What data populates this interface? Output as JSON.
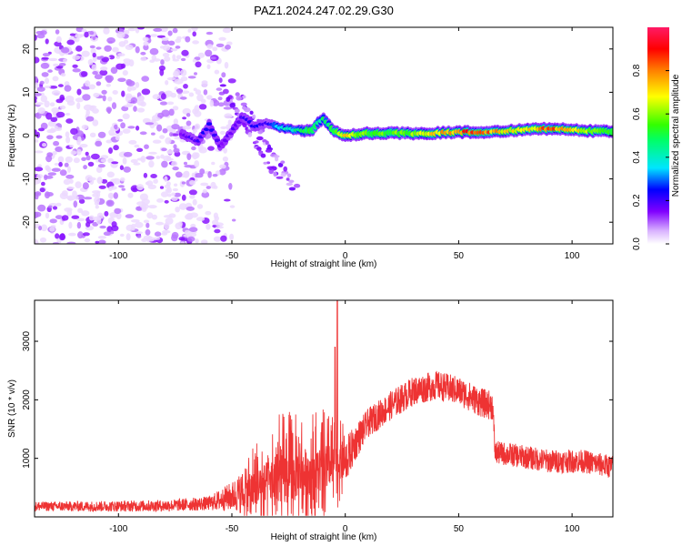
{
  "title": "PAZ1.2024.247.02.29.G30",
  "chart_data": [
    {
      "type": "heatmap",
      "xlabel": "Height of straight line (km)",
      "ylabel": "Frequency (Hz)",
      "xlim": [
        -137,
        118
      ],
      "ylim": [
        -25,
        25
      ],
      "xticks": [
        -100,
        -50,
        0,
        50,
        100
      ],
      "yticks": [
        -20,
        -10,
        0,
        10,
        20
      ],
      "colorbar": {
        "label": "Normalized spectral amplitude",
        "range": [
          0,
          1
        ],
        "ticks": [
          0.0,
          0.2,
          0.4,
          0.6,
          0.8
        ],
        "colormap": [
          "#ffffff",
          "#d9b3ff",
          "#8000ff",
          "#0000ff",
          "#00e5ff",
          "#00ff66",
          "#33ff00",
          "#ffff00",
          "#ff8000",
          "#ff0000",
          "#ff1a66"
        ]
      },
      "noise_region": {
        "x_range": [
          -137,
          -48
        ],
        "freq_range": [
          -25,
          25
        ],
        "amplitude": 0.05
      },
      "signal_track": [
        {
          "x": -72,
          "f": 0.5,
          "amp": 0.15
        },
        {
          "x": -65,
          "f": -1.5,
          "amp": 0.2
        },
        {
          "x": -60,
          "f": 2.5,
          "amp": 0.25
        },
        {
          "x": -55,
          "f": -2.5,
          "amp": 0.15
        },
        {
          "x": -45,
          "f": 4.5,
          "amp": 0.2
        },
        {
          "x": -40,
          "f": 2.0,
          "amp": 0.25
        },
        {
          "x": -35,
          "f": 3.0,
          "amp": 0.2
        },
        {
          "x": -30,
          "f": 2.0,
          "amp": 0.35
        },
        {
          "x": -25,
          "f": 1.5,
          "amp": 0.4
        },
        {
          "x": -20,
          "f": 1.2,
          "amp": 0.45
        },
        {
          "x": -15,
          "f": 1.0,
          "amp": 0.5
        },
        {
          "x": -10,
          "f": 4.0,
          "amp": 0.45
        },
        {
          "x": -5,
          "f": 1.0,
          "amp": 0.5
        },
        {
          "x": 0,
          "f": 0.0,
          "amp": 0.7
        },
        {
          "x": 5,
          "f": 0.2,
          "amp": 0.6
        },
        {
          "x": 10,
          "f": 0.5,
          "amp": 0.55
        },
        {
          "x": 20,
          "f": 0.6,
          "amp": 0.55
        },
        {
          "x": 30,
          "f": 0.5,
          "amp": 0.6
        },
        {
          "x": 40,
          "f": 0.6,
          "amp": 0.7
        },
        {
          "x": 50,
          "f": 0.8,
          "amp": 0.8
        },
        {
          "x": 60,
          "f": 0.8,
          "amp": 0.85
        },
        {
          "x": 70,
          "f": 1.0,
          "amp": 0.7
        },
        {
          "x": 80,
          "f": 1.4,
          "amp": 0.65
        },
        {
          "x": 90,
          "f": 1.6,
          "amp": 0.85
        },
        {
          "x": 100,
          "f": 1.3,
          "amp": 0.7
        },
        {
          "x": 110,
          "f": 1.0,
          "amp": 0.6
        },
        {
          "x": 118,
          "f": 1.0,
          "amp": 0.55
        }
      ],
      "diagonal_branches": [
        {
          "x_start": -55,
          "f_start": 12,
          "x_end": -30,
          "f_end": -10
        },
        {
          "x_start": -48,
          "f_start": 10,
          "x_end": -22,
          "f_end": -12
        }
      ]
    },
    {
      "type": "line",
      "xlabel": "Height of straight line (km)",
      "ylabel": "SNR (10 * v/v)",
      "xlim": [
        -137,
        118
      ],
      "ylim": [
        0,
        3700
      ],
      "xticks": [
        -100,
        -50,
        0,
        50,
        100
      ],
      "yticks": [
        1000,
        2000,
        3000
      ],
      "color": "#ee3333",
      "envelope": [
        {
          "x": -137,
          "y": 180,
          "noise": 80
        },
        {
          "x": -110,
          "y": 180,
          "noise": 90
        },
        {
          "x": -80,
          "y": 190,
          "noise": 100
        },
        {
          "x": -60,
          "y": 230,
          "noise": 120
        },
        {
          "x": -50,
          "y": 350,
          "noise": 250
        },
        {
          "x": -40,
          "y": 500,
          "noise": 500
        },
        {
          "x": -30,
          "y": 650,
          "noise": 700
        },
        {
          "x": -20,
          "y": 750,
          "noise": 700
        },
        {
          "x": -10,
          "y": 800,
          "noise": 650
        },
        {
          "x": -4,
          "y": 900,
          "noise": 500
        },
        {
          "x": 0,
          "y": 950,
          "noise": 400
        },
        {
          "x": 5,
          "y": 1300,
          "noise": 300
        },
        {
          "x": 10,
          "y": 1600,
          "noise": 250
        },
        {
          "x": 20,
          "y": 1900,
          "noise": 250
        },
        {
          "x": 30,
          "y": 2150,
          "noise": 250
        },
        {
          "x": 40,
          "y": 2250,
          "noise": 250
        },
        {
          "x": 50,
          "y": 2150,
          "noise": 250
        },
        {
          "x": 60,
          "y": 1950,
          "noise": 250
        },
        {
          "x": 65,
          "y": 1900,
          "noise": 250
        },
        {
          "x": 66,
          "y": 1100,
          "noise": 200
        },
        {
          "x": 75,
          "y": 1050,
          "noise": 200
        },
        {
          "x": 90,
          "y": 950,
          "noise": 200
        },
        {
          "x": 105,
          "y": 950,
          "noise": 200
        },
        {
          "x": 118,
          "y": 850,
          "noise": 200
        }
      ],
      "peaks": [
        {
          "x": -3.5,
          "y": 3700
        },
        {
          "x": -4.5,
          "y": 2900
        }
      ]
    }
  ]
}
